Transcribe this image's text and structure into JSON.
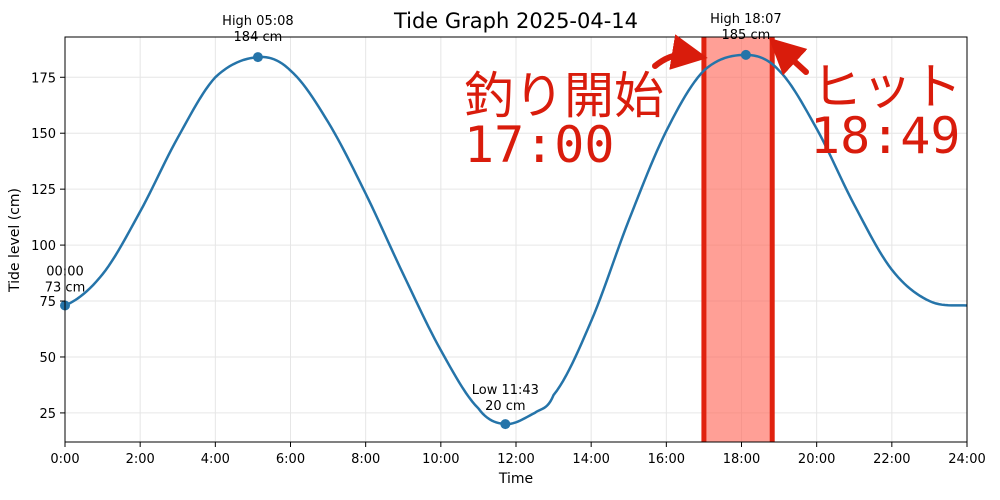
{
  "chart_data": {
    "type": "line",
    "title": "Tide Graph 2025-04-14",
    "xlabel": "Time",
    "ylabel": "Tide level (cm)",
    "xlim": [
      0,
      24
    ],
    "ylim": [
      12,
      193
    ],
    "x_ticks": [
      0,
      2,
      4,
      6,
      8,
      10,
      12,
      14,
      16,
      18,
      20,
      22,
      24
    ],
    "x_tick_labels": [
      "0:00",
      "2:00",
      "4:00",
      "6:00",
      "8:00",
      "10:00",
      "12:00",
      "14:00",
      "16:00",
      "18:00",
      "20:00",
      "22:00",
      "24:00"
    ],
    "y_ticks": [
      25,
      50,
      75,
      100,
      125,
      150,
      175
    ],
    "y_tick_labels": [
      "25",
      "50",
      "75",
      "100",
      "125",
      "150",
      "175"
    ],
    "grid": true,
    "line_color": "#2574a9",
    "series": [
      {
        "values_description": "",
        "x": [
          0,
          1,
          2,
          3,
          4,
          5.133,
          6,
          7,
          8,
          9,
          10,
          11,
          11.717,
          12.5,
          13,
          14,
          15,
          16,
          17,
          18.117,
          19,
          20,
          21,
          22,
          23,
          24
        ],
        "y": [
          73,
          87,
          115,
          148,
          175,
          184,
          178,
          155,
          123,
          87,
          53,
          27,
          20,
          25,
          33,
          66,
          111,
          151,
          178,
          185,
          178,
          152,
          118,
          89,
          75,
          73
        ]
      }
    ],
    "markers": [
      {
        "x": 0,
        "y": 73,
        "label_line1": "00:00",
        "label_line2": "73 cm"
      },
      {
        "x": 5.133,
        "y": 184,
        "label_line1": "High 05:08",
        "label_line2": "184 cm"
      },
      {
        "x": 11.717,
        "y": 20,
        "label_line1": "Low 11:43",
        "label_line2": "20 cm"
      },
      {
        "x": 18.117,
        "y": 185,
        "label_line1": "High 18:07",
        "label_line2": "185 cm"
      }
    ],
    "highlight": {
      "x_start": 17.0,
      "x_end": 18.817,
      "fill": "#ff6b5e",
      "edge": "#e0220f"
    },
    "overlays": {
      "start_label": "釣り開始",
      "start_time": "17:00",
      "hit_label": "ヒット",
      "hit_time": "18:49",
      "color": "#d91c0c"
    }
  }
}
